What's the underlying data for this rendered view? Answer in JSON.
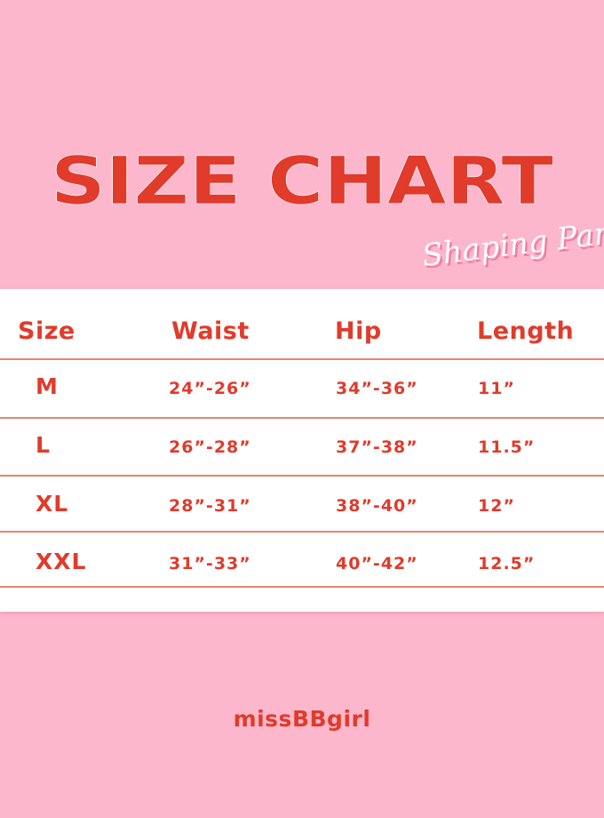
{
  "title": "SIZE CHART",
  "subtitle": "Shaping Pants",
  "colors": {
    "background": "#fdb7cd",
    "accent": "#e03b2b",
    "panel": "#ffffff"
  },
  "table": {
    "headers": [
      "Size",
      "Waist",
      "Hip",
      "Length"
    ],
    "rows": [
      [
        "M",
        "24”-26”",
        "34”-36”",
        "11”"
      ],
      [
        "L",
        "26”-28”",
        "37”-38”",
        "11.5”"
      ],
      [
        "XL",
        "28”-31”",
        "38”-40”",
        "12”"
      ],
      [
        "XXL",
        "31”-33”",
        "40”-42”",
        "12.5”"
      ]
    ]
  },
  "brand": "missBBgirl"
}
